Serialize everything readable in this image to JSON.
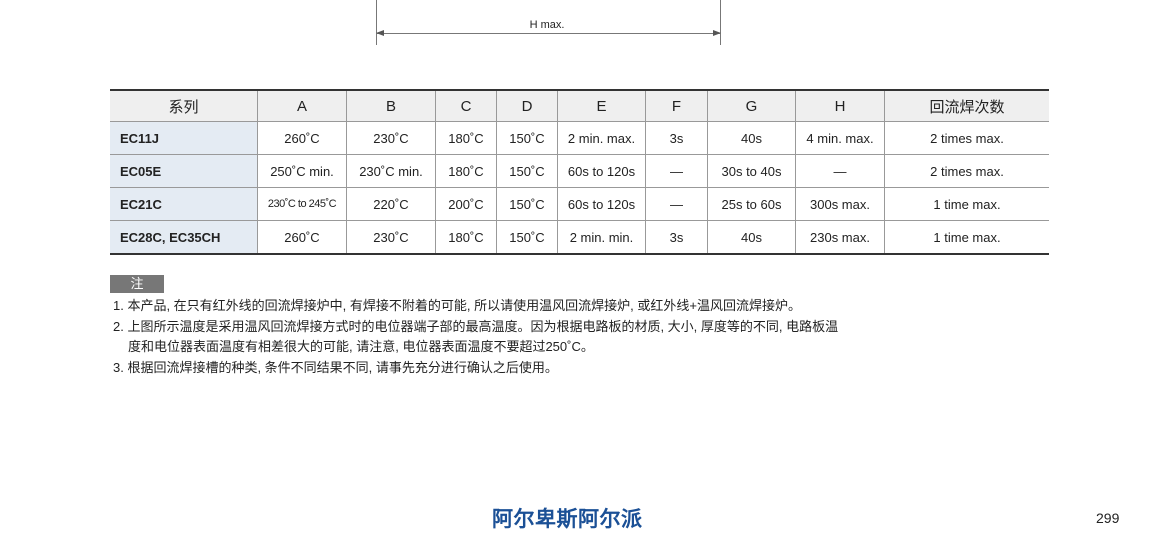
{
  "diagram": {
    "dimension_label": "H max."
  },
  "table": {
    "headers": [
      "系列",
      "A",
      "B",
      "C",
      "D",
      "E",
      "F",
      "G",
      "H",
      "回流焊次数"
    ],
    "rows": [
      [
        "EC11J",
        "260˚C",
        "230˚C",
        "180˚C",
        "150˚C",
        "2 min. max.",
        "3s",
        "40s",
        "4 min. max.",
        "2 times max."
      ],
      [
        "EC05E",
        "250˚C min.",
        "230˚C min.",
        "180˚C",
        "150˚C",
        "60s to 120s",
        "—",
        "30s to 40s",
        "—",
        "2 times max."
      ],
      [
        "EC21C",
        "230˚C to 245˚C",
        "220˚C",
        "200˚C",
        "150˚C",
        "60s to 120s",
        "—",
        "25s to 60s",
        "300s max.",
        "1 time max."
      ],
      [
        "EC28C, EC35CH",
        "260˚C",
        "230˚C",
        "180˚C",
        "150˚C",
        "2 min. min.",
        "3s",
        "40s",
        "230s max.",
        "1 time max."
      ]
    ]
  },
  "notes": {
    "tag": "注",
    "items": [
      "1. 本产品, 在只有红外线的回流焊接炉中, 有焊接不附着的可能, 所以请使用温风回流焊接炉, 或红外线+温风回流焊接炉。",
      "2. 上图所示温度是采用温风回流焊接方式时的电位器端子部的最高温度。因为根据电路板的材质, 大小, 厚度等的不同, 电路板温",
      "度和电位器表面温度有相差很大的可能, 请注意, 电位器表面温度不要超过250˚C。",
      "3. 根据回流焊接槽的种类, 条件不同结果不同, 请事先充分进行确认之后使用。"
    ]
  },
  "footer": {
    "brand": "阿尔卑斯阿尔派",
    "page_number": "299"
  },
  "colors": {
    "brand": "#1b5096",
    "series_bg": "#e4ebf3",
    "header_bg": "#efefef"
  }
}
